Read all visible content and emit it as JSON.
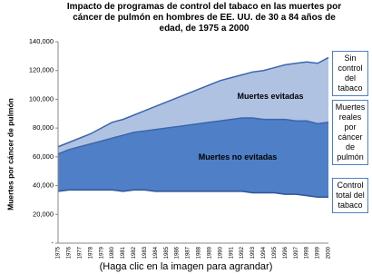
{
  "chart_data": {
    "type": "area",
    "title": "Impacto de programas de control del tabaco en las muertes por cáncer de pulmón en hombres de EE. UU. de 30 a 84 años de edad, de 1975 a 2000",
    "y_label": "Muertes por cáncer de pulmón",
    "caption": "(Haga clic en la imagen para agrandar)",
    "annotations": [
      "Muertes evitadas",
      "Muertes no evitadas"
    ],
    "categories": [
      "1975",
      "1976",
      "1977",
      "1978",
      "1979",
      "1980",
      "1981",
      "1982",
      "1983",
      "1984",
      "1985",
      "1986",
      "1987",
      "1988",
      "1989",
      "1990",
      "1991",
      "1992",
      "1993",
      "1994",
      "1995",
      "1996",
      "1997",
      "1998",
      "1999",
      "2000"
    ],
    "series": [
      {
        "name": "Sin control del tabaco",
        "color": "#3a66ad",
        "fill": "#b0c2e2",
        "values": [
          67000,
          70000,
          73000,
          76000,
          80000,
          84000,
          86000,
          89000,
          92000,
          95000,
          98000,
          101000,
          104000,
          107000,
          110000,
          113000,
          115000,
          117000,
          119000,
          120000,
          122000,
          124000,
          125000,
          126000,
          125000,
          129000
        ]
      },
      {
        "name": "Muertes reales por cáncer de pulmón",
        "color": "#3a66ad",
        "fill": "#4f7fc6",
        "values": [
          62000,
          65000,
          67000,
          69000,
          71000,
          73000,
          75000,
          77000,
          78000,
          79000,
          80000,
          81000,
          82000,
          83000,
          84000,
          85000,
          86000,
          87000,
          87000,
          86000,
          86000,
          86000,
          85000,
          85000,
          83000,
          84000
        ]
      },
      {
        "name": "Control total del tabaco",
        "color": "#2f5597",
        "fill": "#ffffff",
        "values": [
          36000,
          37000,
          37000,
          37000,
          37000,
          37000,
          36000,
          37000,
          37000,
          36000,
          36000,
          36000,
          36000,
          36000,
          36000,
          36000,
          36000,
          36000,
          35000,
          35000,
          35000,
          34000,
          34000,
          33000,
          32000,
          32000
        ]
      }
    ],
    "ylim": [
      0,
      140000
    ],
    "yticks": [
      {
        "value": 0,
        "label": "-"
      },
      {
        "value": 20000,
        "label": "20,000"
      },
      {
        "value": 40000,
        "label": "40,000"
      },
      {
        "value": 60000,
        "label": "60,000"
      },
      {
        "value": 80000,
        "label": "80,000"
      },
      {
        "value": 100000,
        "label": "100,000"
      },
      {
        "value": 120000,
        "label": "120,000"
      },
      {
        "value": 140000,
        "label": "140,000"
      }
    ],
    "grid": false
  }
}
